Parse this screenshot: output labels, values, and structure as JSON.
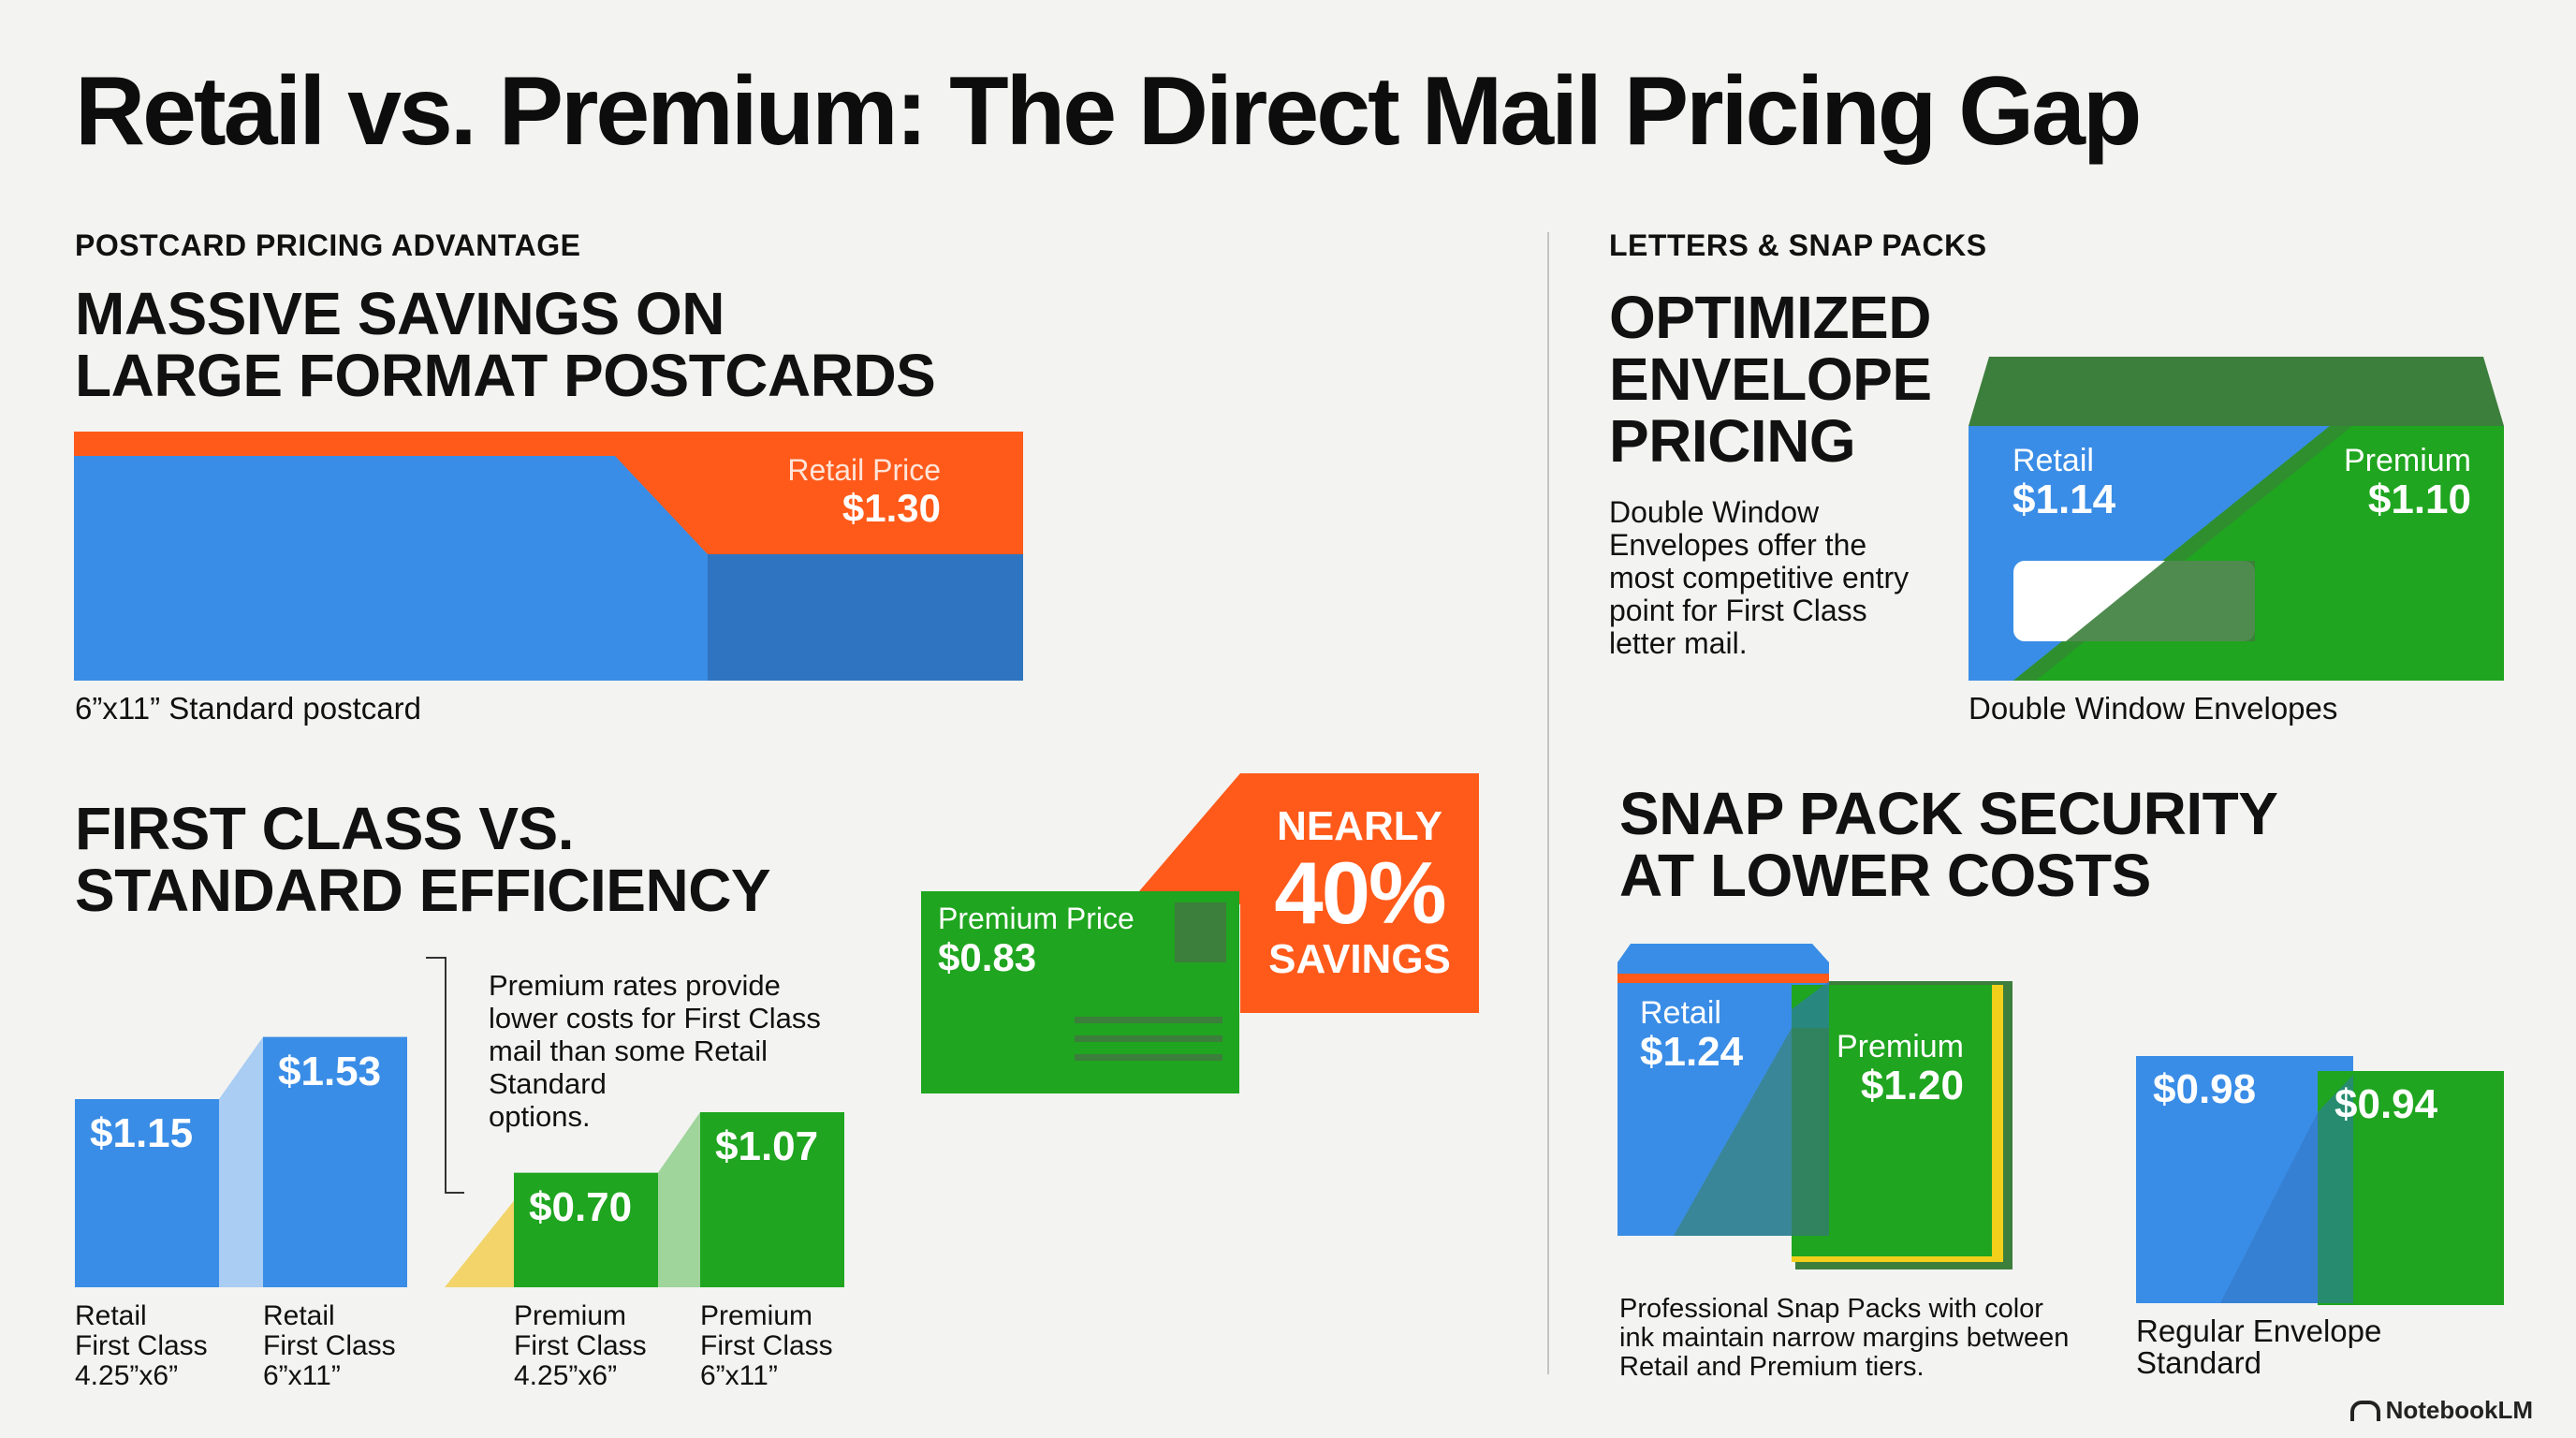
{
  "title": "Retail vs. Premium: The Direct Mail Pricing Gap",
  "colors": {
    "blue": "#3a8de6",
    "darkBlue": "#2f74c0",
    "orange": "#ff5a1a",
    "green": "#1fa51f",
    "darkGreen": "#3c7e3c",
    "yellow": "#f2cf1a"
  },
  "postcard": {
    "kicker": "POSTCARD PRICING ADVANTAGE",
    "heading": "MASSIVE SAVINGS ON\nLARGE FORMAT POSTCARDS",
    "retail_label": "Retail Price",
    "retail_value": "$1.30",
    "caption": "6”x11” Standard postcard"
  },
  "first_class": {
    "heading": "FIRST CLASS VS.\nSTANDARD EFFICIENCY",
    "note": "Premium rates provide\nlower costs for First Class\nmail than some Retail\nStandard\noptions.",
    "bars": [
      {
        "value": "$1.15",
        "amount": 1.15,
        "label": "Retail\nFirst Class\n4.25”x6”"
      },
      {
        "value": "$1.53",
        "amount": 1.53,
        "label": "Retail\nFirst Class\n6”x11”"
      },
      {
        "value": "$0.70",
        "amount": 0.7,
        "label": "Premium\nFirst Class\n4.25”x6”"
      },
      {
        "value": "$1.07",
        "amount": 1.07,
        "label": "Premium\nFirst Class\n6”x11”"
      }
    ]
  },
  "premium_card": {
    "label": "Premium Price",
    "value": "$0.83"
  },
  "savings_badge": {
    "line1": "NEARLY",
    "line2": "40%",
    "line3": "SAVINGS"
  },
  "letters": {
    "kicker": "LETTERS & SNAP PACKS",
    "heading": "OPTIMIZED\nENVELOPE\nPRICING",
    "description": "Double Window\nEnvelopes offer the\nmost competitive entry\npoint for First Class\nletter mail.",
    "retail_label": "Retail",
    "retail_value": "$1.14",
    "premium_label": "Premium",
    "premium_value": "$1.10",
    "caption": "Double Window Envelopes"
  },
  "snap": {
    "heading": "SNAP PACK SECURITY\nAT LOWER COSTS",
    "retail_label": "Retail",
    "retail_value": "$1.24",
    "premium_label": "Premium",
    "premium_value": "$1.20",
    "caption": "Professional Snap Packs with color\nink maintain narrow margins between\nRetail and Premium tiers."
  },
  "regular": {
    "retail_value": "$0.98",
    "premium_value": "$0.94",
    "caption": "Regular Envelope\nStandard"
  },
  "brand": "NotebookLM"
}
